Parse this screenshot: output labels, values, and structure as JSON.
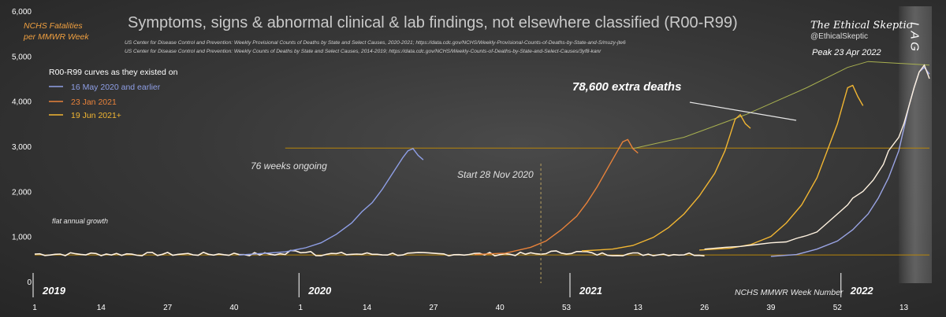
{
  "chart_data": {
    "type": "line",
    "title": "Symptoms, signs & abnormal clinical & lab findings, not elsewhere classified (R00-R99)",
    "sources": [
      "US Center for Disease Control and Prevention: Weekly Provisional Counts of Deaths by State and Select Causes, 2020-2021; https://data.cdc.gov/NCHS/Weekly-Provisional-Counts-of-Deaths-by-State-and-S/muzy-jte6",
      "US Center for Disease Control and Prevention: Weekly Counts of Deaths by State and Select Causes, 2014-2019; https://data.cdc.gov/NCHS/Weekly-Counts-of-Deaths-by-State-and-Select-Causes/3yf8-kanr"
    ],
    "ylabel_line1": "NCHS Fatalities",
    "ylabel_line2": "per MMWR Week",
    "xlabel": "NCHS MMWR Week Number",
    "ylim": [
      0,
      6000
    ],
    "yticks": [
      "0",
      "1,000",
      "2,000",
      "3,000",
      "4,000",
      "5,000",
      "6,000"
    ],
    "ytick_values": [
      0,
      1000,
      2000,
      3000,
      4000,
      5000,
      6000
    ],
    "x_range": [
      1,
      176
    ],
    "xticks": [
      {
        "idx": 1,
        "label": "1"
      },
      {
        "idx": 14,
        "label": "14"
      },
      {
        "idx": 27,
        "label": "27"
      },
      {
        "idx": 40,
        "label": "40"
      },
      {
        "idx": 53,
        "label": "1"
      },
      {
        "idx": 66,
        "label": "14"
      },
      {
        "idx": 79,
        "label": "27"
      },
      {
        "idx": 92,
        "label": "40"
      },
      {
        "idx": 105,
        "label": "53"
      },
      {
        "idx": 119,
        "label": "13"
      },
      {
        "idx": 132,
        "label": "26"
      },
      {
        "idx": 145,
        "label": "39"
      },
      {
        "idx": 158,
        "label": "52"
      },
      {
        "idx": 171,
        "label": "13"
      }
    ],
    "years": [
      {
        "idx": 1,
        "label": "2019"
      },
      {
        "idx": 53,
        "label": "2020"
      },
      {
        "idx": 106,
        "label": "2021"
      },
      {
        "idx": 159,
        "label": "2022"
      }
    ],
    "legend_title": "R00-R99 curves as they existed on",
    "legend_placement": "top-left",
    "series": [
      {
        "name": "16 May 2020 and earlier",
        "color": "#8f9fe6",
        "points": [
          [
            41,
            590
          ],
          [
            45,
            620
          ],
          [
            50,
            660
          ],
          [
            54,
            750
          ],
          [
            57,
            860
          ],
          [
            60,
            1050
          ],
          [
            63,
            1300
          ],
          [
            65,
            1550
          ],
          [
            67,
            1750
          ],
          [
            69,
            2050
          ],
          [
            71,
            2400
          ],
          [
            73,
            2750
          ],
          [
            74,
            2900
          ],
          [
            75,
            2950
          ],
          [
            76,
            2800
          ],
          [
            77,
            2700
          ]
        ]
      },
      {
        "name": "23 Jan 2021",
        "color": "#e8823a",
        "points": [
          [
            87,
            600
          ],
          [
            93,
            630
          ],
          [
            98,
            760
          ],
          [
            101,
            900
          ],
          [
            104,
            1150
          ],
          [
            107,
            1450
          ],
          [
            109,
            1750
          ],
          [
            111,
            2100
          ],
          [
            113,
            2500
          ],
          [
            115,
            2900
          ],
          [
            116,
            3100
          ],
          [
            117,
            3150
          ],
          [
            118,
            2950
          ],
          [
            119,
            2850
          ]
        ]
      },
      {
        "name": "19 Jun 2021+",
        "color": "#f2b632",
        "points": [
          [
            108,
            680
          ],
          [
            114,
            720
          ],
          [
            118,
            800
          ],
          [
            122,
            980
          ],
          [
            125,
            1200
          ],
          [
            128,
            1500
          ],
          [
            131,
            1900
          ],
          [
            134,
            2400
          ],
          [
            136,
            2900
          ],
          [
            137,
            3250
          ],
          [
            138,
            3600
          ],
          [
            139,
            3700
          ],
          [
            140,
            3500
          ],
          [
            141,
            3400
          ]
        ]
      },
      {
        "name": "",
        "color": "#f2b632",
        "points": [
          [
            131,
            700
          ],
          [
            137,
            740
          ],
          [
            141,
            820
          ],
          [
            145,
            1000
          ],
          [
            148,
            1300
          ],
          [
            151,
            1700
          ],
          [
            154,
            2300
          ],
          [
            156,
            2900
          ],
          [
            158,
            3500
          ],
          [
            159,
            3900
          ],
          [
            160,
            4300
          ],
          [
            161,
            4350
          ],
          [
            162,
            4100
          ],
          [
            163,
            3900
          ]
        ]
      },
      {
        "name": "",
        "color": "#9aa4e4",
        "points": [
          [
            145,
            560
          ],
          [
            150,
            600
          ],
          [
            154,
            720
          ],
          [
            158,
            900
          ],
          [
            161,
            1150
          ],
          [
            164,
            1500
          ],
          [
            166,
            1850
          ],
          [
            168,
            2300
          ],
          [
            170,
            2900
          ],
          [
            171,
            3400
          ],
          [
            172,
            3900
          ],
          [
            173,
            4300
          ],
          [
            174,
            4650
          ],
          [
            175,
            4750
          ],
          [
            176,
            4600
          ]
        ]
      },
      {
        "name": "",
        "color": "#fff2e0",
        "points": [
          [
            132,
            720
          ],
          [
            136,
            760
          ],
          [
            139,
            780
          ],
          [
            142,
            820
          ],
          [
            145,
            860
          ],
          [
            148,
            880
          ],
          [
            150,
            960
          ],
          [
            152,
            1020
          ],
          [
            154,
            1100
          ],
          [
            156,
            1300
          ],
          [
            158,
            1500
          ],
          [
            160,
            1700
          ],
          [
            161,
            1850
          ],
          [
            163,
            2000
          ],
          [
            165,
            2250
          ],
          [
            167,
            2600
          ],
          [
            168,
            2900
          ],
          [
            170,
            3200
          ],
          [
            171,
            3500
          ],
          [
            172,
            3900
          ],
          [
            173,
            4300
          ],
          [
            174,
            4650
          ],
          [
            175,
            4800
          ],
          [
            176,
            4500
          ]
        ]
      }
    ],
    "baseline_2019_2021": {
      "start": 1,
      "end": 132,
      "mean": 610,
      "amplitude": 40,
      "color": "#fff2e0"
    },
    "reference_lines": [
      {
        "from": 50,
        "to": 176,
        "y": 2960,
        "color": "#b8860b"
      },
      {
        "from": 1,
        "to": 176,
        "y": 590,
        "color": "#b8860b"
      }
    ],
    "trend_line": {
      "points": [
        [
          118,
          2950
        ],
        [
          128,
          3200
        ],
        [
          140,
          3700
        ],
        [
          152,
          4300
        ],
        [
          160,
          4750
        ],
        [
          164,
          4880
        ],
        [
          176,
          4800
        ]
      ],
      "color": "#a8b050"
    },
    "annotations": {
      "weeks_ongoing": "76 weeks ongoing",
      "start": "Start 28 Nov 2020",
      "start_idx": 100,
      "flat": "flat annual growth",
      "extra": "78,600 extra deaths",
      "peak": "Peak 23 Apr 2022",
      "lag": "L A G"
    }
  },
  "branding": {
    "name": "The Ethical Skeptic",
    "handle": "@EthicalSkeptic"
  }
}
